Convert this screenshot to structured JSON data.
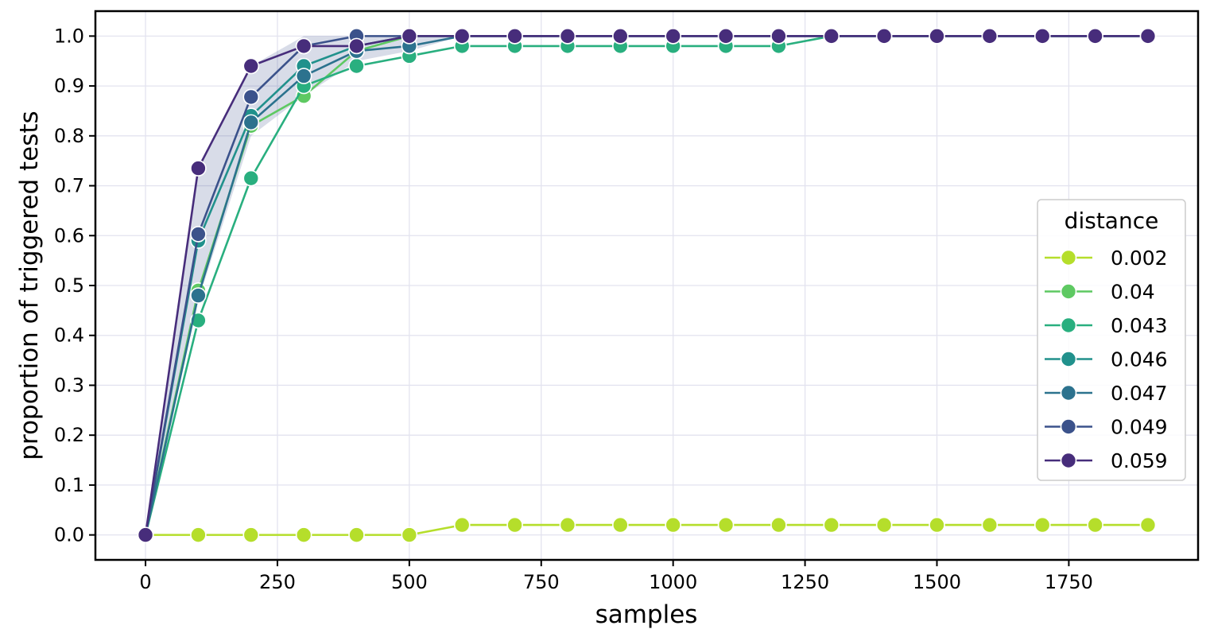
{
  "chart_data": {
    "type": "line",
    "xlabel": "samples",
    "ylabel": "proportion of triggered tests",
    "xlim": [
      -95,
      1995
    ],
    "ylim": [
      -0.05,
      1.05
    ],
    "x_ticks": [
      0,
      250,
      500,
      750,
      1000,
      1250,
      1500,
      1750
    ],
    "x_tick_labels": [
      "0",
      "250",
      "500",
      "750",
      "1000",
      "1250",
      "1500",
      "1750"
    ],
    "y_ticks": [
      0.0,
      0.1,
      0.2,
      0.3,
      0.4,
      0.5,
      0.6,
      0.7,
      0.8,
      0.9,
      1.0
    ],
    "y_tick_labels": [
      "0.0",
      "0.1",
      "0.2",
      "0.3",
      "0.4",
      "0.5",
      "0.6",
      "0.7",
      "0.8",
      "0.9",
      "1.0"
    ],
    "grid": true,
    "legend": {
      "title": "distance",
      "position": "center-right"
    },
    "x": [
      0,
      100,
      200,
      300,
      400,
      500,
      600,
      700,
      800,
      900,
      1000,
      1100,
      1200,
      1300,
      1400,
      1500,
      1600,
      1700,
      1800,
      1900
    ],
    "series": [
      {
        "name": "0.002",
        "color": "#b5de2b",
        "values": [
          0,
          0,
          0,
          0,
          0,
          0,
          0.02,
          0.02,
          0.02,
          0.02,
          0.02,
          0.02,
          0.02,
          0.02,
          0.02,
          0.02,
          0.02,
          0.02,
          0.02,
          0.02
        ]
      },
      {
        "name": "0.04",
        "color": "#5ec962",
        "values": [
          0,
          0.49,
          0.82,
          0.88,
          0.97,
          1.0,
          1.0,
          1.0,
          1.0,
          1.0,
          1.0,
          1.0,
          1.0,
          1.0,
          1.0,
          1.0,
          1.0,
          1.0,
          1.0,
          1.0
        ]
      },
      {
        "name": "0.043",
        "color": "#29af7f",
        "values": [
          0,
          0.43,
          0.715,
          0.9,
          0.94,
          0.96,
          0.98,
          0.98,
          0.98,
          0.98,
          0.98,
          0.98,
          0.98,
          1.0,
          1.0,
          1.0,
          1.0,
          1.0,
          1.0,
          1.0
        ]
      },
      {
        "name": "0.046",
        "color": "#21918c",
        "values": [
          0,
          0.59,
          0.84,
          0.94,
          0.98,
          1.0,
          1.0,
          1.0,
          1.0,
          1.0,
          1.0,
          1.0,
          1.0,
          1.0,
          1.0,
          1.0,
          1.0,
          1.0,
          1.0,
          1.0
        ]
      },
      {
        "name": "0.047",
        "color": "#2c728e",
        "values": [
          0,
          0.48,
          0.827,
          0.92,
          0.97,
          0.98,
          1.0,
          1.0,
          1.0,
          1.0,
          1.0,
          1.0,
          1.0,
          1.0,
          1.0,
          1.0,
          1.0,
          1.0,
          1.0,
          1.0
        ]
      },
      {
        "name": "0.049",
        "color": "#3b528b",
        "values": [
          0,
          0.603,
          0.878,
          0.98,
          1.0,
          1.0,
          1.0,
          1.0,
          1.0,
          1.0,
          1.0,
          1.0,
          1.0,
          1.0,
          1.0,
          1.0,
          1.0,
          1.0,
          1.0,
          1.0
        ]
      },
      {
        "name": "0.059",
        "color": "#472d7b",
        "values": [
          0,
          0.735,
          0.94,
          0.98,
          0.98,
          1.0,
          1.0,
          1.0,
          1.0,
          1.0,
          1.0,
          1.0,
          1.0,
          1.0,
          1.0,
          1.0,
          1.0,
          1.0,
          1.0,
          1.0
        ]
      }
    ],
    "confidence_band": {
      "color": "#3b528b",
      "x": [
        0,
        100,
        200,
        300,
        400,
        500,
        600
      ],
      "lower": [
        0,
        0.47,
        0.8,
        0.88,
        0.95,
        0.97,
        1.0
      ],
      "upper": [
        0,
        0.74,
        0.94,
        1.0,
        1.0,
        1.0,
        1.0
      ]
    }
  }
}
